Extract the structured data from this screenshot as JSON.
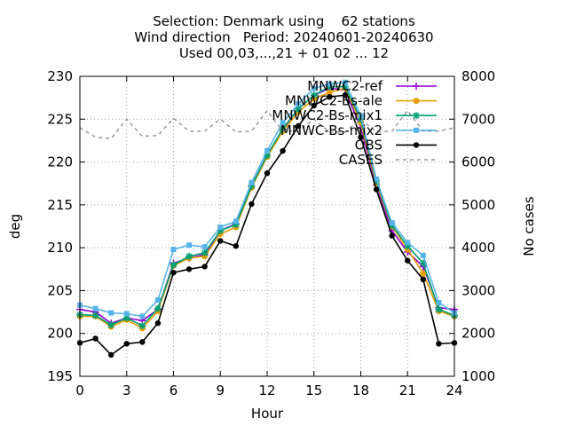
{
  "chart_data": {
    "type": "line",
    "title_lines": [
      "Selection: Denmark using    62 stations",
      "Wind direction   Period: 20240601-20240630",
      "Used 00,03,...,21 + 01 02 ... 12"
    ],
    "xlabel": "Hour",
    "ylabel": "deg",
    "y2label": "No cases",
    "xlim": [
      0,
      24
    ],
    "ylim": [
      195,
      230
    ],
    "y2lim": [
      1000,
      8000
    ],
    "x_ticks": [
      "0",
      "3",
      "6",
      "9",
      "12",
      "15",
      "18",
      "21",
      "24"
    ],
    "y_ticks": [
      "195",
      "200",
      "205",
      "210",
      "215",
      "220",
      "225",
      "230"
    ],
    "y2_ticks": [
      "1000",
      "2000",
      "3000",
      "4000",
      "5000",
      "6000",
      "7000",
      "8000"
    ],
    "grid": true,
    "legend_position": "top-right",
    "x": [
      0,
      1,
      2,
      3,
      4,
      5,
      6,
      7,
      8,
      9,
      10,
      11,
      12,
      13,
      14,
      15,
      16,
      17,
      18,
      19,
      20,
      21,
      22,
      23,
      24
    ],
    "series": [
      {
        "name": "MNWC2-ref",
        "color": "#9400d3",
        "marker": "plus",
        "axis": "y1",
        "values": [
          202.8,
          202.5,
          201.2,
          201.8,
          201.5,
          202.8,
          208.2,
          208.8,
          209.2,
          212.0,
          212.8,
          217.2,
          220.8,
          223.8,
          226.2,
          227.8,
          228.6,
          228.4,
          224.0,
          217.3,
          212.0,
          209.5,
          207.8,
          203.0,
          202.8
        ]
      },
      {
        "name": "MNWC2-Bs-ale",
        "color": "#e69f00",
        "marker": "circle",
        "axis": "y1",
        "values": [
          202.0,
          202.0,
          200.8,
          201.6,
          200.6,
          202.6,
          207.9,
          208.8,
          209.0,
          211.6,
          212.4,
          217.0,
          220.6,
          223.6,
          225.8,
          227.4,
          228.1,
          228.6,
          224.6,
          217.5,
          212.5,
          209.8,
          207.0,
          202.6,
          202.0
        ]
      },
      {
        "name": "MNWC2-Bs-mix1",
        "color": "#009e73",
        "marker": "star",
        "axis": "y1",
        "values": [
          202.2,
          202.1,
          201.0,
          201.8,
          200.9,
          202.9,
          208.0,
          209.0,
          209.4,
          212.0,
          212.7,
          217.2,
          220.8,
          223.9,
          226.2,
          227.8,
          228.8,
          228.8,
          225.0,
          217.8,
          212.6,
          210.2,
          208.2,
          202.8,
          202.1
        ]
      },
      {
        "name": "MNWC-Bs-mix2",
        "color": "#56b4e9",
        "marker": "square",
        "axis": "y1",
        "values": [
          203.3,
          202.9,
          202.4,
          202.3,
          202.0,
          203.9,
          209.8,
          210.3,
          210.1,
          212.4,
          213.1,
          217.6,
          221.3,
          224.6,
          226.8,
          228.6,
          229.1,
          229.3,
          225.4,
          218.0,
          212.9,
          210.6,
          209.1,
          203.6,
          202.4
        ]
      },
      {
        "name": "OBS",
        "color": "#000000",
        "marker": "filled-circle",
        "axis": "y1",
        "values": [
          198.9,
          199.4,
          197.5,
          198.8,
          199.0,
          201.2,
          207.1,
          207.5,
          207.8,
          210.8,
          210.2,
          215.1,
          218.7,
          221.3,
          224.2,
          226.6,
          227.6,
          227.8,
          222.9,
          216.8,
          211.4,
          208.5,
          206.3,
          198.8,
          198.9
        ]
      },
      {
        "name": "CASES",
        "color": "#999999",
        "marker": "none",
        "dash": true,
        "axis": "y2",
        "values": [
          6800,
          6580,
          6550,
          7000,
          6600,
          6620,
          7020,
          6720,
          6720,
          7000,
          6700,
          6720,
          7200,
          6720,
          6720,
          7000,
          6700,
          6700,
          7000,
          6700,
          6720,
          7200,
          6720,
          6720,
          6800
        ]
      }
    ]
  }
}
